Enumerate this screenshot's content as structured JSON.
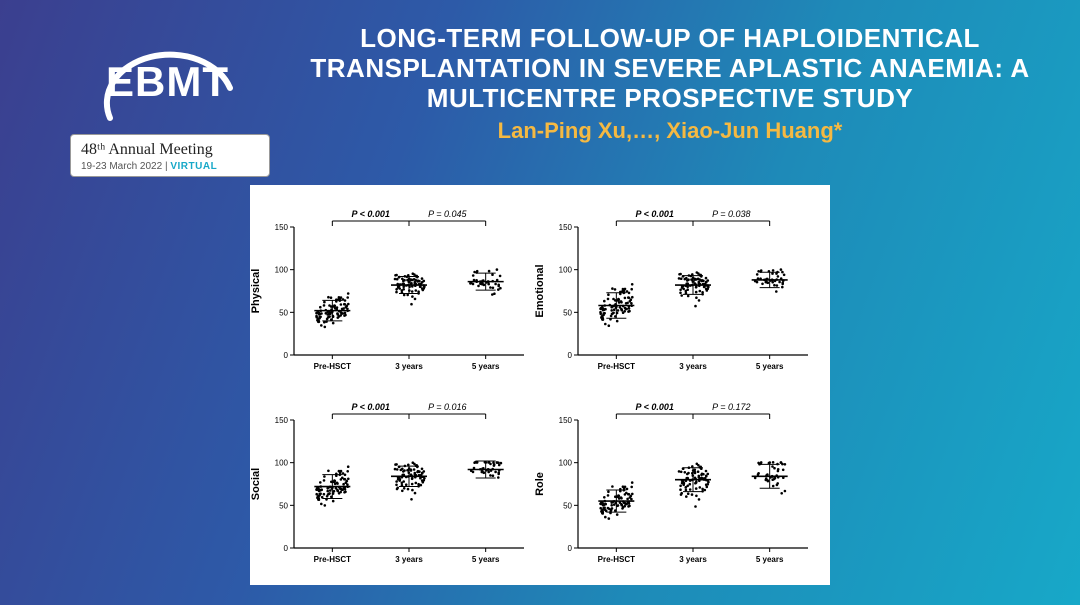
{
  "logo": {
    "text": "EBMT",
    "meeting_line": "48ᵗʰ Annual Meeting",
    "meeting_date": "19-23 March 2022",
    "virtual_tag": "VIRTUAL"
  },
  "title": "LONG-TERM FOLLOW-UP OF HAPLOIDENTICAL TRANSPLANTATION IN SEVERE APLASTIC ANAEMIA: A MULTICENTRE PROSPECTIVE STUDY",
  "authors": "Lan-Ping Xu,…, Xiao-Jun Huang*",
  "authors_color": "#f5b942",
  "panels": [
    {
      "ylabel": "Physical",
      "p_left": "P < 0.001",
      "p_right": "P = 0.045",
      "categories": [
        "Pre-HSCT",
        "3 years",
        "5 years"
      ],
      "means": [
        52,
        82,
        86
      ],
      "sds": [
        12,
        10,
        10
      ],
      "n": [
        90,
        80,
        40
      ],
      "ylim": [
        0,
        150
      ],
      "yticks": [
        0,
        50,
        100,
        150
      ]
    },
    {
      "ylabel": "Emotional",
      "p_left": "P < 0.001",
      "p_right": "P = 0.038",
      "categories": [
        "Pre-HSCT",
        "3 years",
        "5 years"
      ],
      "means": [
        58,
        82,
        88
      ],
      "sds": [
        15,
        11,
        9
      ],
      "n": [
        90,
        80,
        40
      ],
      "ylim": [
        0,
        150
      ],
      "yticks": [
        0,
        50,
        100,
        150
      ]
    },
    {
      "ylabel": "Social",
      "p_left": "P < 0.001",
      "p_right": "P = 0.016",
      "categories": [
        "Pre-HSCT",
        "3 years",
        "5 years"
      ],
      "means": [
        72,
        84,
        92
      ],
      "sds": [
        14,
        12,
        10
      ],
      "n": [
        90,
        80,
        40
      ],
      "ylim": [
        0,
        150
      ],
      "yticks": [
        0,
        50,
        100,
        150
      ]
    },
    {
      "ylabel": "Role",
      "p_left": "P < 0.001",
      "p_right": "P = 0.172",
      "categories": [
        "Pre-HSCT",
        "3 years",
        "5 years"
      ],
      "means": [
        55,
        80,
        84
      ],
      "sds": [
        13,
        14,
        14
      ],
      "n": [
        90,
        80,
        40
      ],
      "ylim": [
        0,
        150
      ],
      "yticks": [
        0,
        50,
        100,
        150
      ]
    }
  ],
  "chart_style": {
    "point_color": "#000000",
    "axis_color": "#000000",
    "background": "#ffffff",
    "tick_fontsize": 8,
    "pval_fontsize": 9,
    "marker_size": 1.3,
    "mean_bar_halfwidth": 18,
    "sd_cap_halfwidth": 10,
    "jitter_width": 16
  }
}
